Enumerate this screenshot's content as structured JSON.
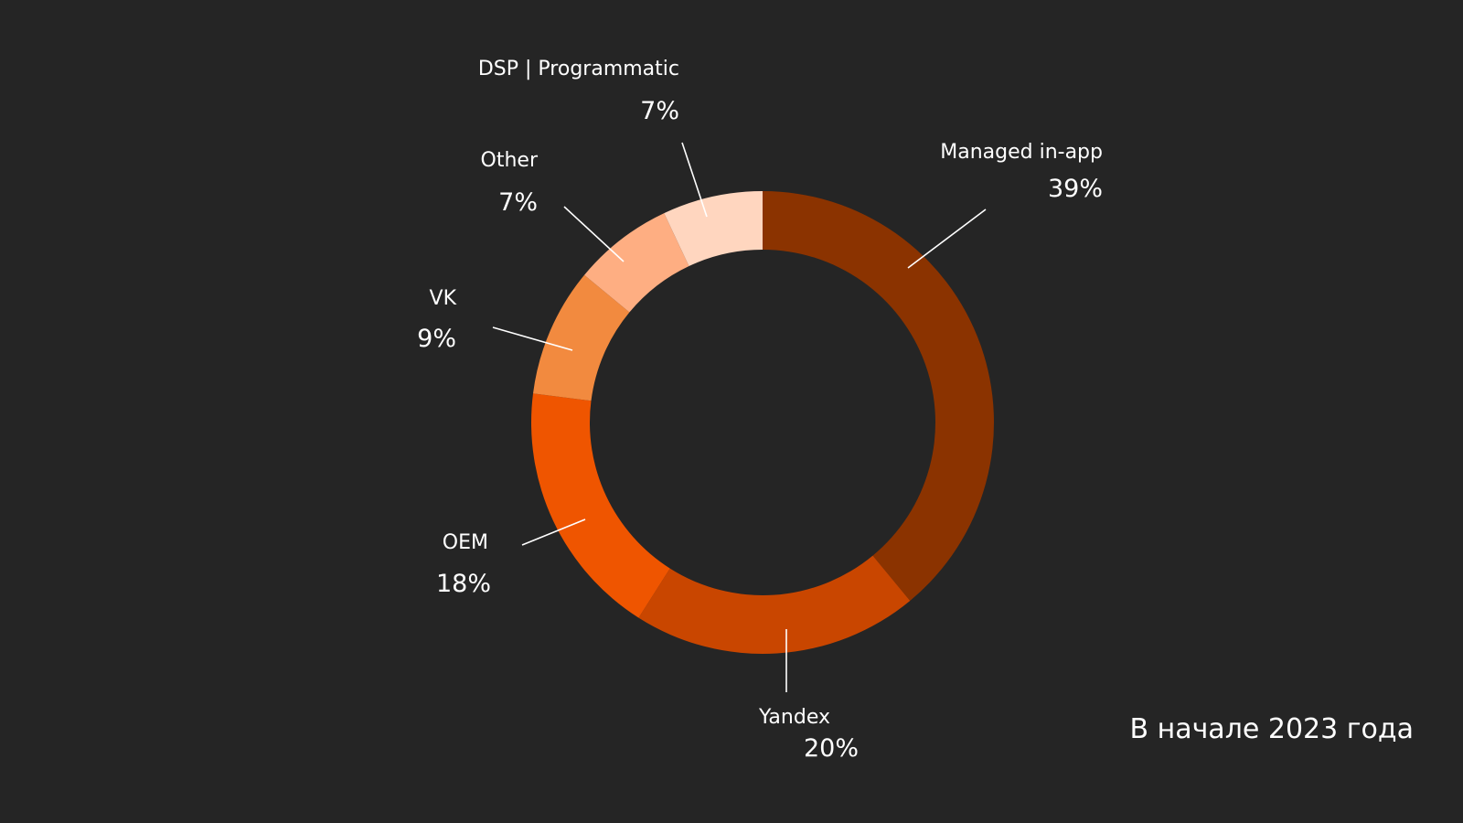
{
  "chart_data": {
    "type": "pie",
    "variant": "donut",
    "slices": [
      {
        "name": "Managed in-app",
        "label": "39%",
        "value": 39,
        "color": "#8B3300"
      },
      {
        "name": "Yandex",
        "label": "20%",
        "value": 20,
        "color": "#C94600"
      },
      {
        "name": "OEM",
        "label": "18%",
        "value": 18,
        "color": "#EF5500"
      },
      {
        "name": "VK",
        "label": "9%",
        "value": 9,
        "color": "#F28A3F"
      },
      {
        "name": "Other",
        "label": "7%",
        "value": 7,
        "color": "#FEAE82"
      },
      {
        "name": "DSP | Programmatic",
        "label": "7%",
        "value": 7,
        "color": "#FFD6BF"
      }
    ],
    "legend": "none"
  },
  "background_color": "#252525",
  "footnote": "В начале 2023 года"
}
